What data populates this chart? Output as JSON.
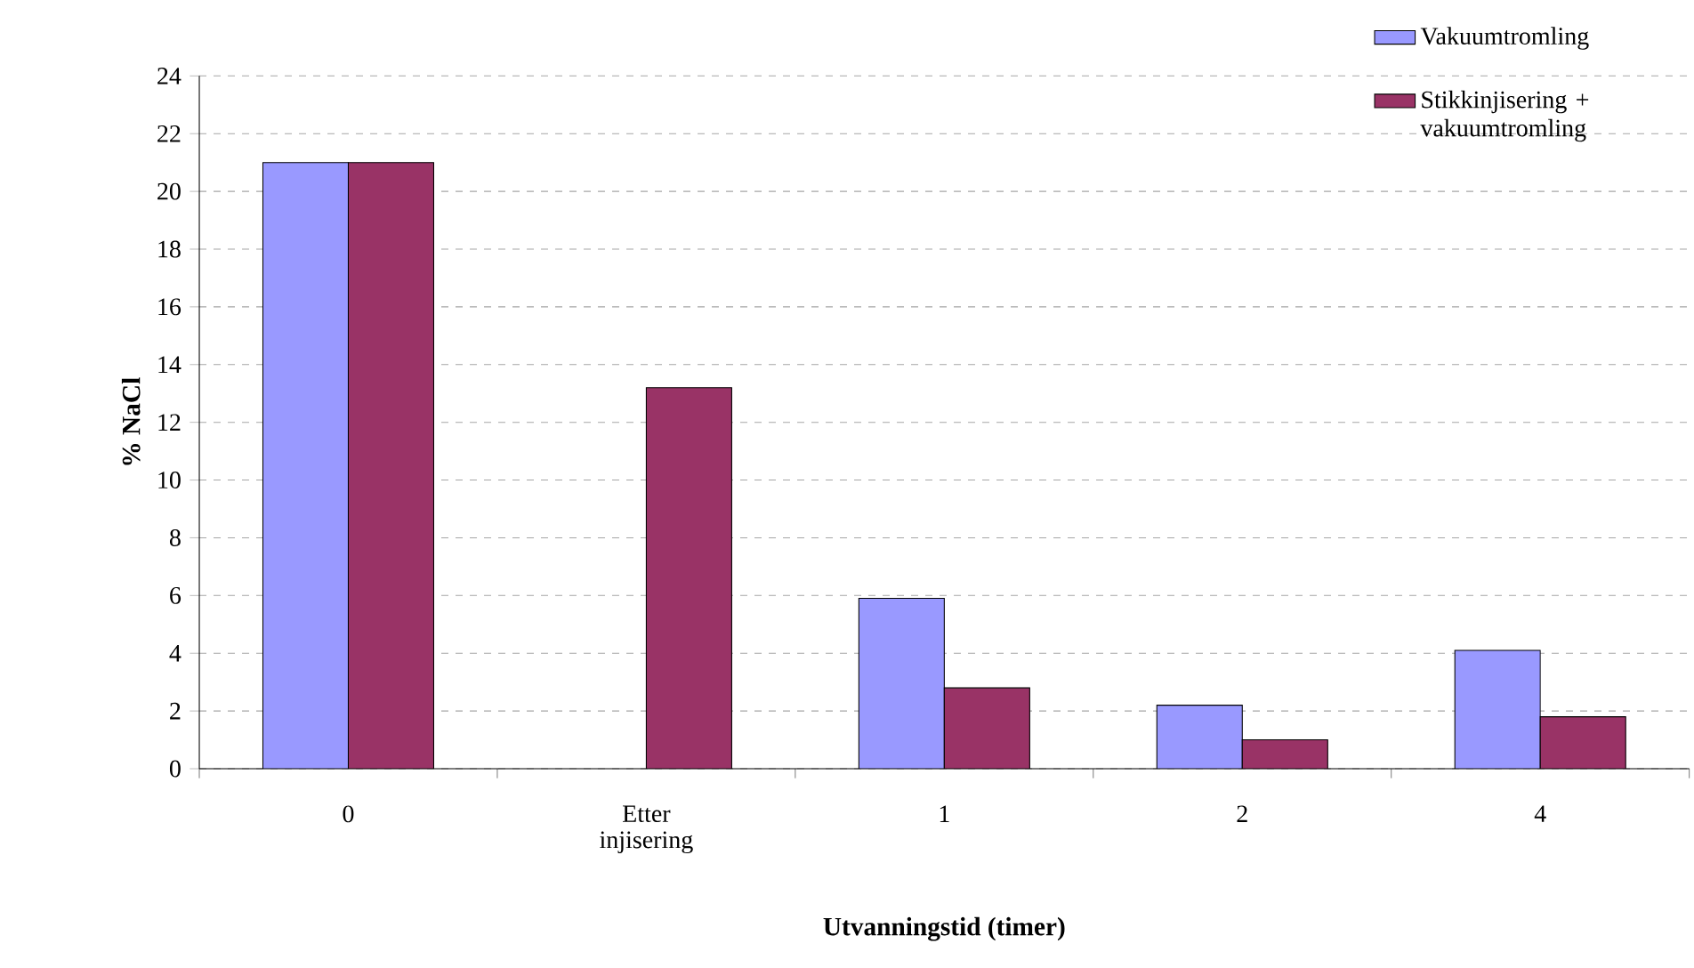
{
  "chart_data": {
    "type": "bar",
    "xlabel": "Utvanningstid (timer)",
    "ylabel": "% NaCl",
    "categories": [
      "0",
      "Etter injisering",
      "1",
      "2",
      "4"
    ],
    "series": [
      {
        "name": "Vakuumtromling",
        "color": "#9999ff",
        "values": [
          21,
          null,
          5.9,
          2.2,
          4.1
        ]
      },
      {
        "name": "Stikkinjisering + vakuumtromling",
        "color": "#993366",
        "values": [
          21,
          13.2,
          2.8,
          1.0,
          1.8
        ]
      }
    ],
    "ylim": [
      0,
      24
    ],
    "yticks": [
      0,
      2,
      4,
      6,
      8,
      10,
      12,
      14,
      16,
      18,
      20,
      22,
      24
    ],
    "grid": "y",
    "legend": "top right"
  }
}
